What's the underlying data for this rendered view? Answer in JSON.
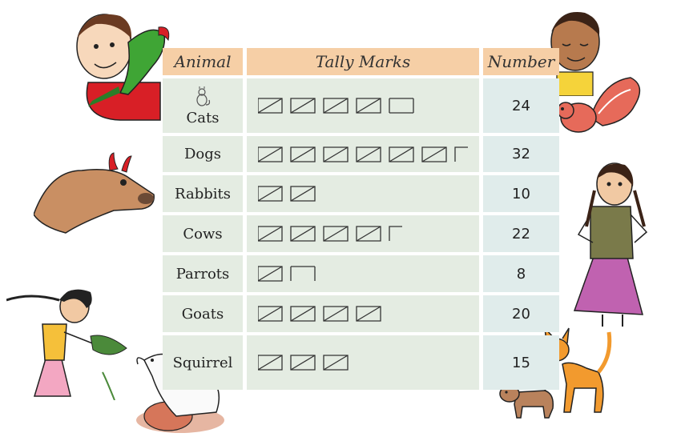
{
  "table": {
    "headers": {
      "animal": "Animal",
      "tally": "Tally Marks",
      "number": "Number"
    },
    "rows": [
      {
        "animal": "Cats",
        "groups": 4,
        "extra": 4,
        "number": "24"
      },
      {
        "animal": "Dogs",
        "groups": 6,
        "extra": 2,
        "number": "32"
      },
      {
        "animal": "Rabbits",
        "groups": 2,
        "extra": 0,
        "number": "10"
      },
      {
        "animal": "Cows",
        "groups": 4,
        "extra": 2,
        "number": "22"
      },
      {
        "animal": "Parrots",
        "groups": 1,
        "extra": 3,
        "number": "8"
      },
      {
        "animal": "Goats",
        "groups": 4,
        "extra": 0,
        "number": "20"
      },
      {
        "animal": "Squirrel",
        "groups": 3,
        "extra": 0,
        "number": "15"
      }
    ]
  },
  "colors": {
    "header": "#f6cfa6",
    "cell": "#e4ece2",
    "number_cell": "#e0eceb",
    "tally": "#333333"
  },
  "icons": [
    "boy-with-parrot",
    "smiling-boy",
    "squirrel",
    "cow-head",
    "girl-standing",
    "girl-feeding-goat",
    "goat",
    "cat",
    "puppy"
  ]
}
